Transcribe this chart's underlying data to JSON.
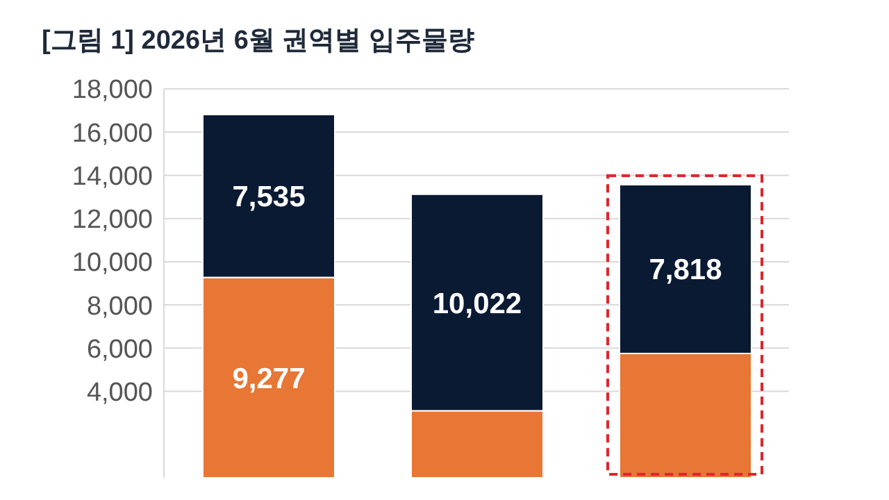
{
  "chart_data": {
    "type": "bar",
    "title": "[그림 1] 2026년  6월 권역별 입주물량",
    "categories": [
      null,
      null,
      null
    ],
    "stacked": true,
    "series": [
      {
        "color": "#e87634",
        "values": [
          9277,
          3100,
          5750
        ],
        "value_labels": [
          "9,277",
          null,
          null
        ]
      },
      {
        "color": "#0b1a33",
        "values": [
          7535,
          10022,
          7818
        ],
        "value_labels": [
          "7,535",
          "10,022",
          "7,818"
        ]
      }
    ],
    "ylim": [
      0,
      18000
    ],
    "yticks": [
      {
        "value": 4000,
        "label": "4,000"
      },
      {
        "value": 6000,
        "label": "6,000"
      },
      {
        "value": 8000,
        "label": "8,000"
      },
      {
        "value": 10000,
        "label": "10,000"
      },
      {
        "value": 12000,
        "label": "12,000"
      },
      {
        "value": 14000,
        "label": "14,000"
      },
      {
        "value": 16000,
        "label": "16,000"
      },
      {
        "value": 18000,
        "label": "18,000"
      }
    ],
    "grid": "y"
  }
}
